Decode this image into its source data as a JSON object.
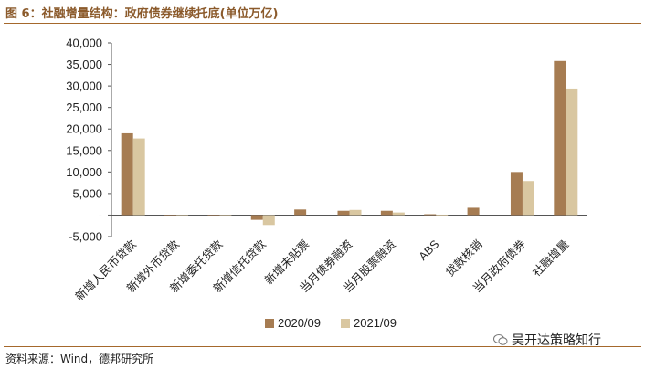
{
  "title": "图 6：社融增量结构：政府债券继续托底(单位万亿)",
  "source": "资料来源：Wind，德邦研究所",
  "watermark": "吴开达策略知行",
  "colors": {
    "series1": "#a67c52",
    "series2": "#d9c7a1",
    "rule": "#a5682c",
    "title": "#8b5a2b"
  },
  "chart_data": {
    "type": "bar",
    "categories": [
      "新增人民币贷款",
      "新增外币贷款",
      "新增委托贷款",
      "新增信托贷款",
      "新增未贴票",
      "当月债券融资",
      "当月股票融资",
      "ABS",
      "贷款核销",
      "当月政府债券",
      "社融增量"
    ],
    "series": [
      {
        "name": "2020/09",
        "values": [
          19000,
          -300,
          -250,
          -1100,
          1300,
          1000,
          1000,
          200,
          1700,
          10000,
          35800
        ]
      },
      {
        "name": "2021/09",
        "values": [
          17800,
          -200,
          -150,
          -2300,
          0,
          1200,
          600,
          100,
          0,
          7900,
          29400
        ]
      }
    ],
    "yticks": [
      "40,000",
      "35,000",
      "30,000",
      "25,000",
      "20,000",
      "15,000",
      "10,000",
      "5,000",
      "-",
      "-5,000"
    ],
    "ylim": [
      -5000,
      40000
    ],
    "grid": false,
    "legend_position": "bottom"
  }
}
